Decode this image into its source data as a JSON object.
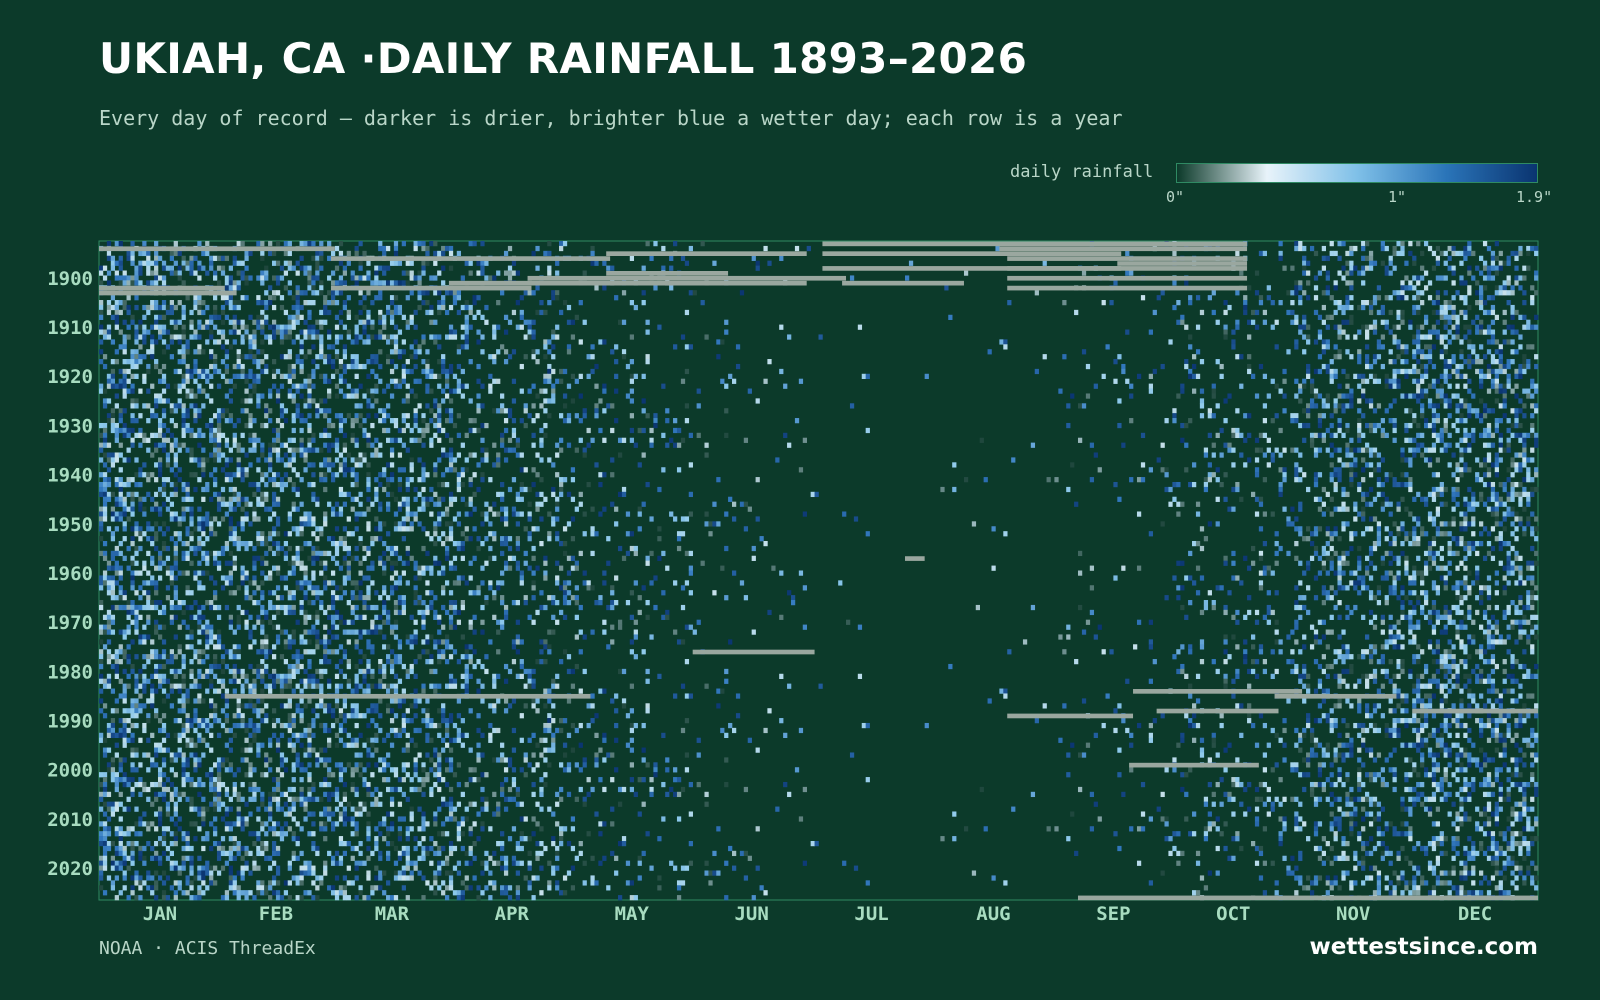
{
  "header": {
    "title": "UKIAH, CA ·DAILY RAINFALL 1893–2026",
    "subtitle": "Every day of record — darker is drier, brighter blue a wetter day; each row is a year"
  },
  "legend": {
    "label": "daily rainfall",
    "ticks": [
      "0\"",
      "1\"",
      "1.9\""
    ],
    "tick_values": [
      0,
      1,
      1.9
    ],
    "colors": [
      "#0c3a2a",
      "#e8f3fa",
      "#7fc0e8",
      "#2a74b8",
      "#0a3470"
    ]
  },
  "footer": {
    "source": "NOAA · ACIS ThreadEx",
    "brand": "wettestsince.com"
  },
  "colors": {
    "background": "#0c3a2a",
    "missing": "#9aa79f",
    "axis_text": "#a8dcc0",
    "frame": "#2f8a63"
  },
  "chart_data": {
    "type": "heatmap",
    "title": "UKIAH, CA ·DAILY RAINFALL 1893–2026",
    "x_axis": {
      "categories": [
        "JAN",
        "FEB",
        "MAR",
        "APR",
        "MAY",
        "JUN",
        "JUL",
        "AUG",
        "SEP",
        "OCT",
        "NOV",
        "DEC"
      ],
      "unit": "day of year",
      "range": [
        1,
        366
      ]
    },
    "y_axis": {
      "ticks": [
        1900,
        1910,
        1920,
        1930,
        1940,
        1950,
        1960,
        1970,
        1980,
        1990,
        2000,
        2010,
        2020
      ],
      "range": [
        1893,
        2026
      ]
    },
    "value_range": [
      0,
      1.9
    ],
    "value_unit": "inches",
    "monthly_wet_day_probability": [
      0.42,
      0.4,
      0.36,
      0.22,
      0.11,
      0.04,
      0.005,
      0.01,
      0.04,
      0.13,
      0.32,
      0.4
    ],
    "missing_spans": [
      {
        "year": 1894,
        "from_day": 1,
        "to_day": 60
      },
      {
        "year": 1895,
        "from_day": 130,
        "to_day": 180
      },
      {
        "year": 1895,
        "from_day": 185,
        "to_day": 260
      },
      {
        "year": 1896,
        "from_day": 60,
        "to_day": 130
      },
      {
        "year": 1897,
        "from_day": 260,
        "to_day": 292
      },
      {
        "year": 1898,
        "from_day": 185,
        "to_day": 260
      },
      {
        "year": 1899,
        "from_day": 130,
        "to_day": 160
      },
      {
        "year": 1900,
        "from_day": 110,
        "to_day": 190
      },
      {
        "year": 1901,
        "from_day": 90,
        "to_day": 180
      },
      {
        "year": 1901,
        "from_day": 190,
        "to_day": 220
      },
      {
        "year": 1902,
        "from_day": 1,
        "to_day": 32
      },
      {
        "year": 1902,
        "from_day": 60,
        "to_day": 110
      },
      {
        "year": 1903,
        "from_day": 1,
        "to_day": 35
      },
      {
        "year": 1893,
        "from_day": 185,
        "to_day": 292
      },
      {
        "year": 1894,
        "from_day": 230,
        "to_day": 292
      },
      {
        "year": 1896,
        "from_day": 232,
        "to_day": 292
      },
      {
        "year": 1898,
        "from_day": 232,
        "to_day": 292
      },
      {
        "year": 1900,
        "from_day": 232,
        "to_day": 292
      },
      {
        "year": 1902,
        "from_day": 232,
        "to_day": 292
      },
      {
        "year": 1957,
        "from_day": 206,
        "to_day": 210
      },
      {
        "year": 1976,
        "from_day": 152,
        "to_day": 182
      },
      {
        "year": 1984,
        "from_day": 264,
        "to_day": 306
      },
      {
        "year": 1985,
        "from_day": 33,
        "to_day": 125
      },
      {
        "year": 1985,
        "from_day": 300,
        "to_day": 330
      },
      {
        "year": 1988,
        "from_day": 270,
        "to_day": 300
      },
      {
        "year": 1988,
        "from_day": 335,
        "to_day": 366
      },
      {
        "year": 1989,
        "from_day": 232,
        "to_day": 263
      },
      {
        "year": 1999,
        "from_day": 263,
        "to_day": 295
      },
      {
        "year": 2026,
        "from_day": 250,
        "to_day": 366
      }
    ]
  }
}
